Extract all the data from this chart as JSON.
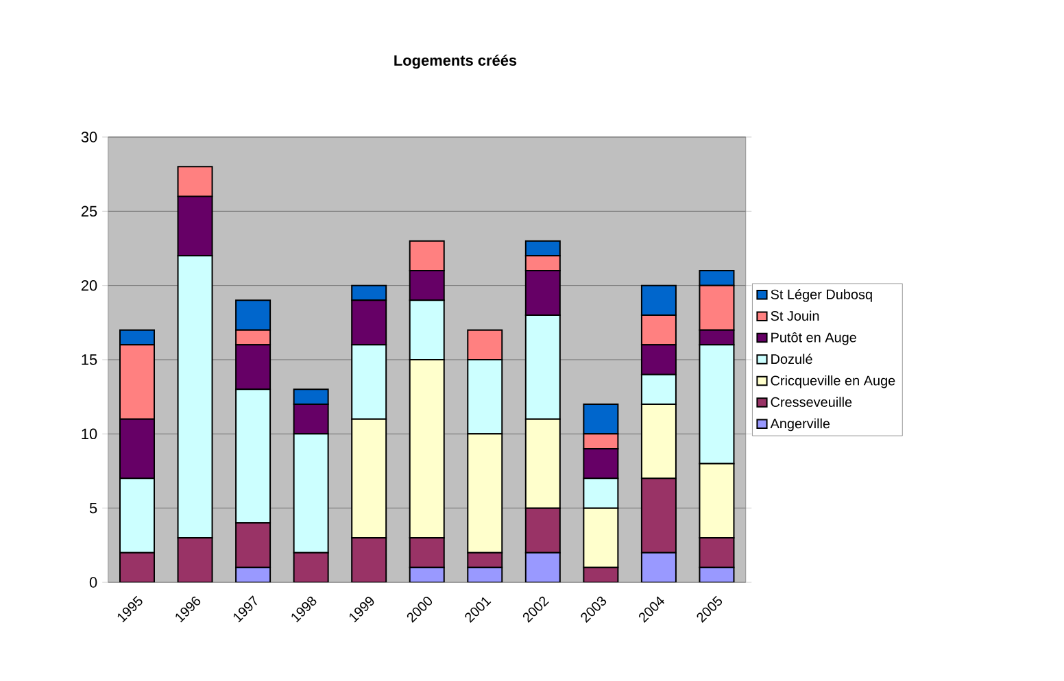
{
  "chart_data": {
    "type": "bar",
    "title": "Logements créés",
    "stacked": true,
    "categories": [
      "1995",
      "1996",
      "1997",
      "1998",
      "1999",
      "2000",
      "2001",
      "2002",
      "2003",
      "2004",
      "2005"
    ],
    "series": [
      {
        "name": "Angerville",
        "color": "#9999ff",
        "values": [
          0,
          0,
          1,
          0,
          0,
          1,
          1,
          2,
          0,
          2,
          1
        ]
      },
      {
        "name": "Cresseveuille",
        "color": "#993366",
        "values": [
          2,
          3,
          3,
          2,
          3,
          2,
          1,
          3,
          1,
          5,
          2
        ]
      },
      {
        "name": "Cricqueville en Auge",
        "color": "#ffffcc",
        "values": [
          0,
          0,
          0,
          0,
          8,
          12,
          8,
          6,
          4,
          5,
          5
        ]
      },
      {
        "name": "Dozulé",
        "color": "#ccffff",
        "values": [
          5,
          19,
          9,
          8,
          5,
          4,
          5,
          7,
          2,
          2,
          8
        ]
      },
      {
        "name": "Putôt en Auge",
        "color": "#660066",
        "values": [
          4,
          4,
          3,
          2,
          3,
          2,
          0,
          3,
          2,
          2,
          1
        ]
      },
      {
        "name": "St Jouin",
        "color": "#ff8080",
        "values": [
          5,
          2,
          1,
          0,
          0,
          2,
          2,
          1,
          1,
          2,
          3
        ]
      },
      {
        "name": "St Léger Dubosq",
        "color": "#0066cc",
        "values": [
          1,
          0,
          2,
          1,
          1,
          0,
          0,
          1,
          2,
          2,
          1
        ]
      }
    ],
    "ylim": [
      0,
      30
    ],
    "yticks": [
      0,
      5,
      10,
      15,
      20,
      25,
      30
    ],
    "grid": "y",
    "legend": "right"
  }
}
